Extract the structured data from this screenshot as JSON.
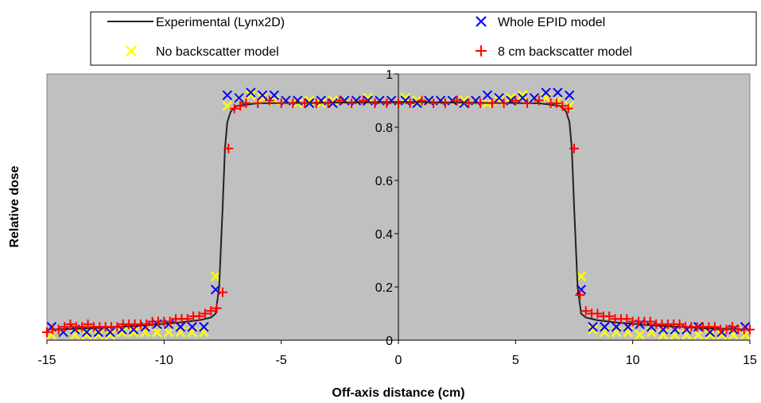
{
  "colors": {
    "plot_bg": "#c0c0c0",
    "experimental": "#222222",
    "whole_epid": "#0000ff",
    "no_backscatter": "#ffff00",
    "backscatter_8cm": "#ff0000"
  },
  "chart_data": {
    "type": "scatter",
    "title": "",
    "xlabel": "Off-axis distance (cm)",
    "ylabel": "Relative dose",
    "xlim": [
      -15,
      15
    ],
    "ylim": [
      0,
      1
    ],
    "x_ticks": [
      "-15",
      "-10",
      "-5",
      "0",
      "5",
      "10",
      "15"
    ],
    "y_ticks": [
      "0",
      "0.2",
      "0.4",
      "0.6",
      "0.8",
      "1"
    ],
    "grid": false,
    "legend_position": "top",
    "series": [
      {
        "name": "Experimental (Lynx2D)",
        "style": "line",
        "color": "#222222",
        "points": [
          [
            -15,
            0.04
          ],
          [
            -13,
            0.045
          ],
          [
            -11,
            0.055
          ],
          [
            -9.5,
            0.065
          ],
          [
            -8.5,
            0.075
          ],
          [
            -8,
            0.085
          ],
          [
            -7.8,
            0.1
          ],
          [
            -7.65,
            0.2
          ],
          [
            -7.5,
            0.5
          ],
          [
            -7.4,
            0.72
          ],
          [
            -7.3,
            0.82
          ],
          [
            -7.15,
            0.86
          ],
          [
            -6.9,
            0.88
          ],
          [
            -6,
            0.89
          ],
          [
            -3,
            0.892
          ],
          [
            0,
            0.895
          ],
          [
            3,
            0.892
          ],
          [
            6,
            0.89
          ],
          [
            6.9,
            0.88
          ],
          [
            7.15,
            0.86
          ],
          [
            7.3,
            0.82
          ],
          [
            7.4,
            0.72
          ],
          [
            7.5,
            0.5
          ],
          [
            7.65,
            0.2
          ],
          [
            7.8,
            0.1
          ],
          [
            8,
            0.085
          ],
          [
            8.5,
            0.075
          ],
          [
            9.5,
            0.065
          ],
          [
            11,
            0.055
          ],
          [
            13,
            0.045
          ],
          [
            15,
            0.04
          ]
        ]
      },
      {
        "name": "Whole EPID model",
        "style": "x-marker",
        "color": "#0000ff",
        "points": [
          [
            -14.8,
            0.05
          ],
          [
            -14.3,
            0.03
          ],
          [
            -13.8,
            0.04
          ],
          [
            -13.3,
            0.03
          ],
          [
            -12.8,
            0.03
          ],
          [
            -12.3,
            0.03
          ],
          [
            -11.8,
            0.04
          ],
          [
            -11.3,
            0.04
          ],
          [
            -10.8,
            0.05
          ],
          [
            -10.3,
            0.06
          ],
          [
            -9.8,
            0.06
          ],
          [
            -9.3,
            0.05
          ],
          [
            -8.8,
            0.05
          ],
          [
            -8.3,
            0.05
          ],
          [
            -7.8,
            0.19
          ],
          [
            -7.3,
            0.92
          ],
          [
            -6.8,
            0.91
          ],
          [
            -6.3,
            0.93
          ],
          [
            -5.8,
            0.92
          ],
          [
            -5.3,
            0.92
          ],
          [
            -4.8,
            0.9
          ],
          [
            -4.3,
            0.9
          ],
          [
            -3.8,
            0.89
          ],
          [
            -3.3,
            0.9
          ],
          [
            -2.8,
            0.89
          ],
          [
            -2.3,
            0.9
          ],
          [
            -1.8,
            0.9
          ],
          [
            -1.3,
            0.9
          ],
          [
            -0.8,
            0.9
          ],
          [
            -0.3,
            0.9
          ],
          [
            0.3,
            0.9
          ],
          [
            0.8,
            0.89
          ],
          [
            1.3,
            0.9
          ],
          [
            1.8,
            0.9
          ],
          [
            2.3,
            0.9
          ],
          [
            2.8,
            0.89
          ],
          [
            3.3,
            0.9
          ],
          [
            3.8,
            0.92
          ],
          [
            4.3,
            0.91
          ],
          [
            4.8,
            0.9
          ],
          [
            5.3,
            0.91
          ],
          [
            5.8,
            0.91
          ],
          [
            6.3,
            0.93
          ],
          [
            6.8,
            0.93
          ],
          [
            7.3,
            0.92
          ],
          [
            7.8,
            0.19
          ],
          [
            8.3,
            0.05
          ],
          [
            8.8,
            0.05
          ],
          [
            9.3,
            0.05
          ],
          [
            9.8,
            0.05
          ],
          [
            10.3,
            0.06
          ],
          [
            10.8,
            0.05
          ],
          [
            11.3,
            0.04
          ],
          [
            11.8,
            0.04
          ],
          [
            12.3,
            0.04
          ],
          [
            12.8,
            0.05
          ],
          [
            13.3,
            0.03
          ],
          [
            13.8,
            0.03
          ],
          [
            14.3,
            0.04
          ],
          [
            14.8,
            0.05
          ]
        ]
      },
      {
        "name": "No backscatter model",
        "style": "x-marker",
        "color": "#ffff00",
        "points": [
          [
            -14.8,
            0.02
          ],
          [
            -14.3,
            0.03
          ],
          [
            -13.8,
            0.02
          ],
          [
            -13.3,
            0.02
          ],
          [
            -12.8,
            0.02
          ],
          [
            -12.3,
            0.02
          ],
          [
            -11.8,
            0.03
          ],
          [
            -11.3,
            0.03
          ],
          [
            -10.8,
            0.03
          ],
          [
            -10.3,
            0.03
          ],
          [
            -9.8,
            0.03
          ],
          [
            -9.3,
            0.03
          ],
          [
            -8.8,
            0.03
          ],
          [
            -8.3,
            0.03
          ],
          [
            -7.8,
            0.24
          ],
          [
            -7.3,
            0.88
          ],
          [
            -6.8,
            0.91
          ],
          [
            -6.3,
            0.92
          ],
          [
            -5.8,
            0.91
          ],
          [
            -5.3,
            0.9
          ],
          [
            -4.8,
            0.9
          ],
          [
            -4.3,
            0.89
          ],
          [
            -3.8,
            0.9
          ],
          [
            -3.3,
            0.89
          ],
          [
            -2.8,
            0.9
          ],
          [
            -2.3,
            0.9
          ],
          [
            -1.8,
            0.9
          ],
          [
            -1.3,
            0.91
          ],
          [
            -0.8,
            0.9
          ],
          [
            -0.3,
            0.9
          ],
          [
            0.3,
            0.91
          ],
          [
            0.8,
            0.9
          ],
          [
            1.3,
            0.9
          ],
          [
            1.8,
            0.9
          ],
          [
            2.3,
            0.9
          ],
          [
            2.8,
            0.9
          ],
          [
            3.3,
            0.9
          ],
          [
            3.8,
            0.89
          ],
          [
            4.3,
            0.9
          ],
          [
            4.8,
            0.91
          ],
          [
            5.3,
            0.92
          ],
          [
            5.8,
            0.91
          ],
          [
            6.3,
            0.91
          ],
          [
            6.8,
            0.9
          ],
          [
            7.3,
            0.88
          ],
          [
            7.8,
            0.24
          ],
          [
            8.3,
            0.04
          ],
          [
            8.8,
            0.03
          ],
          [
            9.3,
            0.03
          ],
          [
            9.8,
            0.03
          ],
          [
            10.3,
            0.02
          ],
          [
            10.8,
            0.03
          ],
          [
            11.3,
            0.02
          ],
          [
            11.8,
            0.02
          ],
          [
            12.3,
            0.02
          ],
          [
            12.8,
            0.02
          ],
          [
            13.3,
            0.02
          ],
          [
            13.8,
            0.02
          ],
          [
            14.3,
            0.02
          ],
          [
            14.8,
            0.02
          ]
        ]
      },
      {
        "name": "8 cm backscatter model",
        "style": "plus-marker",
        "color": "#ff0000",
        "points": [
          [
            -15,
            0.03
          ],
          [
            -14.75,
            0.04
          ],
          [
            -14.5,
            0.04
          ],
          [
            -14.25,
            0.05
          ],
          [
            -14,
            0.06
          ],
          [
            -13.75,
            0.05
          ],
          [
            -13.5,
            0.05
          ],
          [
            -13.25,
            0.06
          ],
          [
            -13,
            0.05
          ],
          [
            -12.75,
            0.05
          ],
          [
            -12.5,
            0.05
          ],
          [
            -12.25,
            0.05
          ],
          [
            -12,
            0.05
          ],
          [
            -11.75,
            0.06
          ],
          [
            -11.5,
            0.06
          ],
          [
            -11.25,
            0.06
          ],
          [
            -11,
            0.06
          ],
          [
            -10.75,
            0.06
          ],
          [
            -10.5,
            0.07
          ],
          [
            -10.25,
            0.07
          ],
          [
            -10,
            0.07
          ],
          [
            -9.75,
            0.07
          ],
          [
            -9.5,
            0.08
          ],
          [
            -9.25,
            0.08
          ],
          [
            -9,
            0.08
          ],
          [
            -8.75,
            0.09
          ],
          [
            -8.5,
            0.09
          ],
          [
            -8.25,
            0.1
          ],
          [
            -8,
            0.11
          ],
          [
            -7.75,
            0.12
          ],
          [
            -7.5,
            0.18
          ],
          [
            -7.25,
            0.72
          ],
          [
            -7,
            0.87
          ],
          [
            -6.75,
            0.88
          ],
          [
            -6.5,
            0.89
          ],
          [
            -6,
            0.89
          ],
          [
            -5.5,
            0.9
          ],
          [
            -5,
            0.89
          ],
          [
            -4.5,
            0.89
          ],
          [
            -4,
            0.89
          ],
          [
            -3.5,
            0.89
          ],
          [
            -3,
            0.89
          ],
          [
            -2.5,
            0.9
          ],
          [
            -2,
            0.89
          ],
          [
            -1.5,
            0.9
          ],
          [
            -1,
            0.89
          ],
          [
            -0.5,
            0.89
          ],
          [
            0,
            0.89
          ],
          [
            0.5,
            0.89
          ],
          [
            1,
            0.9
          ],
          [
            1.5,
            0.89
          ],
          [
            2,
            0.89
          ],
          [
            2.5,
            0.9
          ],
          [
            3,
            0.89
          ],
          [
            3.5,
            0.89
          ],
          [
            4,
            0.89
          ],
          [
            4.5,
            0.89
          ],
          [
            5,
            0.9
          ],
          [
            5.5,
            0.89
          ],
          [
            6,
            0.9
          ],
          [
            6.5,
            0.89
          ],
          [
            6.75,
            0.89
          ],
          [
            7,
            0.88
          ],
          [
            7.25,
            0.87
          ],
          [
            7.5,
            0.72
          ],
          [
            7.75,
            0.17
          ],
          [
            8,
            0.11
          ],
          [
            8.25,
            0.1
          ],
          [
            8.5,
            0.1
          ],
          [
            8.75,
            0.09
          ],
          [
            9,
            0.09
          ],
          [
            9.25,
            0.08
          ],
          [
            9.5,
            0.08
          ],
          [
            9.75,
            0.08
          ],
          [
            10,
            0.07
          ],
          [
            10.25,
            0.07
          ],
          [
            10.5,
            0.07
          ],
          [
            10.75,
            0.07
          ],
          [
            11,
            0.06
          ],
          [
            11.25,
            0.06
          ],
          [
            11.5,
            0.06
          ],
          [
            11.75,
            0.06
          ],
          [
            12,
            0.06
          ],
          [
            12.25,
            0.05
          ],
          [
            12.5,
            0.05
          ],
          [
            12.75,
            0.05
          ],
          [
            13,
            0.05
          ],
          [
            13.25,
            0.05
          ],
          [
            13.5,
            0.05
          ],
          [
            13.75,
            0.04
          ],
          [
            14,
            0.04
          ],
          [
            14.25,
            0.05
          ],
          [
            14.5,
            0.04
          ],
          [
            14.75,
            0.04
          ],
          [
            15,
            0.04
          ]
        ]
      }
    ]
  }
}
